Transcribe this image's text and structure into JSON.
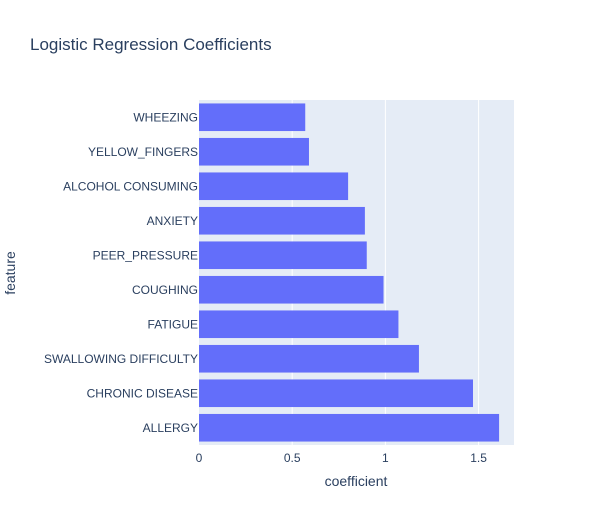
{
  "chart_data": {
    "type": "bar",
    "orientation": "horizontal",
    "title": "Logistic Regression Coefficients",
    "xlabel": "coefficient",
    "ylabel": "feature",
    "categories": [
      "WHEEZING",
      "YELLOW_FINGERS",
      "ALCOHOL CONSUMING",
      "ANXIETY",
      "PEER_PRESSURE",
      "COUGHING",
      "FATIGUE",
      "SWALLOWING DIFFICULTY",
      "CHRONIC DISEASE",
      "ALLERGY"
    ],
    "values": [
      0.57,
      0.59,
      0.8,
      0.89,
      0.9,
      0.99,
      1.07,
      1.18,
      1.47,
      1.61
    ],
    "xlim": [
      0,
      1.69
    ],
    "xticks": [
      0,
      0.5,
      1,
      1.5
    ],
    "xtick_labels": [
      "0",
      "0.5",
      "1",
      "1.5"
    ],
    "grid": true,
    "colors": {
      "bar": "#636efa",
      "plot_bg": "#e5ecf6",
      "grid": "#ffffff",
      "text": "#2a3f5f"
    }
  }
}
